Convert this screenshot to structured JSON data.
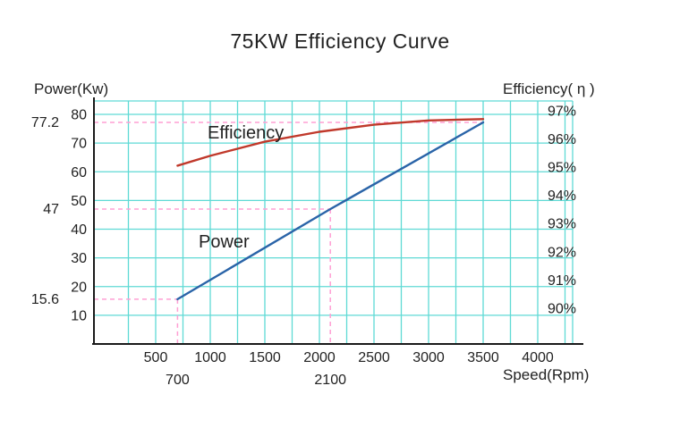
{
  "title": "75KW Efficiency Curve",
  "axes": {
    "left_label": "Power(Kw)",
    "right_label": "Efficiency( η )",
    "x_label": "Speed(Rpm)"
  },
  "series_labels": {
    "power": "Power",
    "efficiency": "Efficiency"
  },
  "colors": {
    "grid": "#5fdad5",
    "axis": "#1a1a1a",
    "power_line": "#2a64a8",
    "efficiency_line": "#c0392b",
    "reference_dash": "#ff9fd4",
    "text": "#222222"
  },
  "chart_data": {
    "type": "line",
    "title": "75KW Efficiency Curve",
    "xlabel": "Speed(Rpm)",
    "grid": true,
    "x_ticks": [
      500,
      1000,
      1500,
      2000,
      2500,
      3000,
      3500,
      4000
    ],
    "x_range": [
      0,
      4250
    ],
    "series": [
      {
        "name": "Power",
        "yaxis": "left",
        "ylabel": "Power(Kw)",
        "ylim": [
          0,
          85
        ],
        "y_ticks": [
          10,
          20,
          30,
          40,
          50,
          60,
          70,
          80
        ],
        "points": [
          [
            700,
            15.6
          ],
          [
            2100,
            47
          ],
          [
            3500,
            77.2
          ]
        ]
      },
      {
        "name": "Efficiency",
        "yaxis": "right",
        "ylabel": "Efficiency( η )",
        "unit": "%",
        "ylim": [
          90,
          97
        ],
        "y_ticks": [
          90,
          91,
          92,
          93,
          94,
          95,
          96,
          97
        ],
        "y_tick_labels": [
          "90%",
          "91%",
          "92%",
          "93%",
          "94%",
          "95%",
          "96%",
          "97%"
        ],
        "points": [
          [
            700,
            95.05
          ],
          [
            1000,
            95.4
          ],
          [
            1500,
            95.9
          ],
          [
            2000,
            96.25
          ],
          [
            2500,
            96.5
          ],
          [
            3000,
            96.65
          ],
          [
            3500,
            96.7
          ]
        ]
      }
    ],
    "annotations": {
      "power_marks": [
        {
          "label": "77.2",
          "value": 77.2,
          "to_speed": 3500
        },
        {
          "label": "47",
          "value": 47,
          "to_speed": 2100
        },
        {
          "label": "15.6",
          "value": 15.6,
          "to_speed": 700
        }
      ],
      "speed_marks": [
        {
          "label": "700",
          "value": 700,
          "to_power": 15.6
        },
        {
          "label": "2100",
          "value": 2100,
          "to_power": 47
        }
      ]
    }
  }
}
